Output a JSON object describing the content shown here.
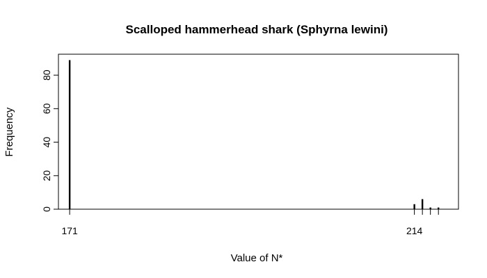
{
  "chart_data": {
    "type": "bar",
    "title": "Scalloped hammerhead shark (Sphyrna lewini)",
    "xlabel": "Value of N*",
    "ylabel": "Frequency",
    "xlim": [
      169.6,
      219.5
    ],
    "ylim": [
      0,
      92.5
    ],
    "x_ticks": [
      171,
      214
    ],
    "y_ticks": [
      0,
      20,
      40,
      60,
      80
    ],
    "grid": false,
    "legend": "none",
    "series": [
      {
        "x": [
          171,
          214,
          215,
          216,
          217
        ],
        "values": [
          89,
          3,
          6,
          1,
          1
        ]
      }
    ],
    "colors": {
      "bars": "#000000",
      "axes": "#000000",
      "background": "#ffffff"
    }
  }
}
